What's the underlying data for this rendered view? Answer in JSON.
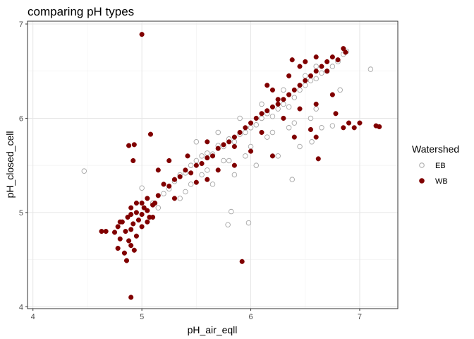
{
  "chart_data": {
    "type": "scatter",
    "title": "comparing pH types",
    "xlabel": "pH_air_eqll",
    "ylabel": "pH_closed_cell",
    "xlim": [
      3.95,
      7.35
    ],
    "ylim": [
      3.98,
      7.03
    ],
    "xticks": [
      4,
      5,
      6,
      7
    ],
    "yticks": [
      4,
      5,
      6,
      7
    ],
    "grid": true,
    "legend": {
      "title": "Watershed",
      "placement": "right",
      "entries": [
        {
          "label": "EB",
          "color": "#a6a6a6",
          "marker": "open-circle"
        },
        {
          "label": "WB",
          "color": "#800000",
          "marker": "filled-circle"
        }
      ]
    },
    "series": [
      {
        "name": "EB",
        "color": "#a6a6a6",
        "marker": "open-circle",
        "points": [
          [
            4.47,
            5.44
          ],
          [
            5.0,
            5.26
          ],
          [
            5.1,
            5.1
          ],
          [
            5.15,
            5.05
          ],
          [
            5.2,
            5.2
          ],
          [
            5.25,
            5.25
          ],
          [
            5.3,
            5.33
          ],
          [
            5.35,
            5.4
          ],
          [
            5.4,
            5.42
          ],
          [
            5.45,
            5.5
          ],
          [
            5.5,
            5.55
          ],
          [
            5.55,
            5.6
          ],
          [
            5.6,
            5.63
          ],
          [
            5.65,
            5.62
          ],
          [
            5.7,
            5.71
          ],
          [
            5.75,
            5.7
          ],
          [
            5.8,
            5.78
          ],
          [
            5.85,
            5.75
          ],
          [
            5.9,
            5.83
          ],
          [
            5.95,
            5.85
          ],
          [
            6.0,
            5.9
          ],
          [
            6.05,
            5.93
          ],
          [
            6.1,
            6.0
          ],
          [
            6.15,
            6.05
          ],
          [
            6.2,
            6.02
          ],
          [
            6.25,
            6.1
          ],
          [
            6.3,
            6.15
          ],
          [
            6.35,
            6.12
          ],
          [
            6.4,
            6.22
          ],
          [
            6.45,
            6.3
          ],
          [
            6.5,
            6.35
          ],
          [
            6.55,
            6.4
          ],
          [
            6.6,
            6.42
          ],
          [
            6.65,
            6.48
          ],
          [
            6.7,
            6.5
          ],
          [
            6.75,
            6.55
          ],
          [
            6.8,
            6.6
          ],
          [
            6.85,
            6.68
          ],
          [
            6.88,
            6.71
          ],
          [
            7.1,
            6.52
          ],
          [
            5.4,
            5.22
          ],
          [
            5.6,
            5.45
          ],
          [
            5.8,
            5.55
          ],
          [
            6.0,
            5.7
          ],
          [
            6.2,
            5.85
          ],
          [
            6.4,
            5.95
          ],
          [
            6.6,
            6.1
          ],
          [
            5.7,
            5.85
          ],
          [
            5.9,
            6.0
          ],
          [
            6.1,
            6.15
          ],
          [
            6.3,
            6.3
          ],
          [
            6.5,
            6.45
          ],
          [
            5.5,
            5.75
          ],
          [
            5.65,
            5.3
          ],
          [
            5.85,
            5.4
          ],
          [
            6.05,
            5.5
          ],
          [
            6.25,
            5.6
          ],
          [
            6.45,
            5.7
          ],
          [
            6.65,
            5.9
          ],
          [
            5.82,
            5.01
          ],
          [
            5.79,
            4.87
          ],
          [
            5.98,
            4.89
          ],
          [
            6.38,
            5.35
          ],
          [
            6.56,
            5.75
          ],
          [
            6.75,
            5.92
          ],
          [
            6.82,
            6.3
          ],
          [
            6.6,
            6.55
          ],
          [
            5.35,
            5.15
          ],
          [
            5.45,
            5.3
          ],
          [
            5.55,
            5.4
          ],
          [
            5.75,
            5.55
          ],
          [
            5.95,
            5.6
          ],
          [
            6.15,
            5.8
          ],
          [
            6.35,
            5.9
          ],
          [
            6.55,
            6.0
          ]
        ]
      },
      {
        "name": "WB",
        "color": "#800000",
        "marker": "filled-circle",
        "points": [
          [
            4.63,
            4.8
          ],
          [
            4.67,
            4.8
          ],
          [
            4.75,
            4.79
          ],
          [
            4.78,
            4.85
          ],
          [
            4.8,
            4.72
          ],
          [
            4.82,
            4.9
          ],
          [
            4.85,
            4.8
          ],
          [
            4.87,
            4.95
          ],
          [
            4.9,
            4.82
          ],
          [
            4.92,
            4.88
          ],
          [
            4.95,
            5.0
          ],
          [
            4.97,
            4.92
          ],
          [
            5.0,
            4.98
          ],
          [
            5.02,
            5.05
          ],
          [
            5.05,
            5.02
          ],
          [
            5.07,
            4.95
          ],
          [
            5.1,
            5.08
          ],
          [
            5.12,
            5.1
          ],
          [
            4.88,
            4.7
          ],
          [
            4.9,
            4.65
          ],
          [
            4.78,
            4.62
          ],
          [
            4.84,
            4.57
          ],
          [
            4.86,
            4.49
          ],
          [
            4.93,
            4.6
          ],
          [
            5.0,
            4.85
          ],
          [
            4.9,
            5.05
          ],
          [
            4.8,
            4.9
          ],
          [
            4.95,
            4.75
          ],
          [
            5.05,
            5.15
          ],
          [
            5.15,
            5.18
          ],
          [
            5.2,
            5.3
          ],
          [
            5.25,
            5.28
          ],
          [
            5.3,
            5.35
          ],
          [
            5.35,
            5.38
          ],
          [
            5.4,
            5.45
          ],
          [
            5.45,
            5.42
          ],
          [
            5.5,
            5.5
          ],
          [
            5.55,
            5.52
          ],
          [
            5.6,
            5.58
          ],
          [
            5.65,
            5.6
          ],
          [
            5.7,
            5.68
          ],
          [
            5.75,
            5.72
          ],
          [
            5.8,
            5.75
          ],
          [
            5.85,
            5.8
          ],
          [
            5.9,
            5.85
          ],
          [
            5.95,
            5.9
          ],
          [
            6.0,
            5.95
          ],
          [
            6.05,
            6.0
          ],
          [
            6.1,
            6.05
          ],
          [
            6.15,
            6.08
          ],
          [
            6.2,
            6.12
          ],
          [
            6.25,
            6.15
          ],
          [
            6.3,
            6.2
          ],
          [
            6.35,
            6.25
          ],
          [
            6.4,
            6.3
          ],
          [
            6.45,
            6.35
          ],
          [
            6.5,
            6.4
          ],
          [
            6.55,
            6.45
          ],
          [
            6.6,
            6.5
          ],
          [
            6.65,
            6.55
          ],
          [
            6.7,
            6.6
          ],
          [
            6.75,
            6.65
          ],
          [
            6.8,
            6.62
          ],
          [
            6.85,
            6.74
          ],
          [
            6.87,
            6.7
          ],
          [
            6.6,
            6.65
          ],
          [
            6.7,
            6.5
          ],
          [
            6.75,
            6.25
          ],
          [
            6.78,
            6.05
          ],
          [
            6.85,
            5.9
          ],
          [
            6.9,
            5.95
          ],
          [
            6.95,
            5.9
          ],
          [
            7.15,
            5.92
          ],
          [
            7.18,
            5.91
          ],
          [
            7.0,
            5.95
          ],
          [
            6.55,
            5.88
          ],
          [
            6.6,
            5.8
          ],
          [
            6.62,
            5.57
          ],
          [
            6.4,
            5.8
          ],
          [
            6.2,
            5.6
          ],
          [
            5.0,
            6.89
          ],
          [
            5.08,
            5.83
          ],
          [
            4.93,
            5.72
          ],
          [
            4.88,
            5.71
          ],
          [
            4.92,
            5.55
          ],
          [
            4.9,
            4.1
          ],
          [
            5.92,
            4.48
          ],
          [
            5.3,
            5.15
          ],
          [
            5.5,
            5.32
          ],
          [
            5.6,
            5.35
          ],
          [
            5.25,
            5.55
          ],
          [
            5.15,
            5.45
          ],
          [
            5.42,
            5.6
          ],
          [
            5.85,
            5.5
          ],
          [
            6.0,
            5.65
          ],
          [
            5.7,
            5.45
          ],
          [
            6.3,
            6.0
          ],
          [
            6.45,
            6.1
          ],
          [
            6.2,
            6.3
          ],
          [
            6.35,
            6.45
          ],
          [
            6.5,
            6.6
          ],
          [
            6.6,
            6.15
          ],
          [
            5.1,
            4.95
          ],
          [
            5.0,
            5.1
          ],
          [
            4.95,
            5.1
          ],
          [
            5.05,
            4.9
          ],
          [
            4.9,
            4.98
          ],
          [
            5.6,
            5.75
          ],
          [
            5.85,
            5.7
          ],
          [
            6.1,
            5.85
          ],
          [
            6.25,
            6.2
          ],
          [
            6.15,
            6.35
          ],
          [
            6.45,
            6.55
          ],
          [
            6.38,
            6.62
          ]
        ]
      }
    ]
  }
}
